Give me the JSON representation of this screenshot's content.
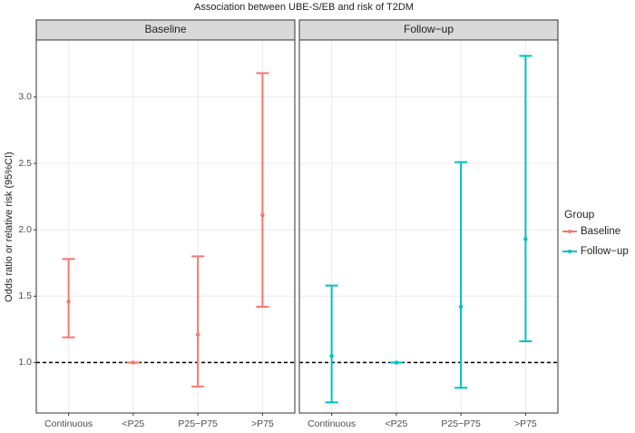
{
  "title": "Association between UBE-S/EB and risk of T2DM",
  "y_label": "Odds ratio or relative risk (95%CI)",
  "legend_title": "Group",
  "chart_data": [
    {
      "type": "errorbar",
      "subtitle": "Baseline",
      "categories": [
        "Continuous",
        "<P25",
        "P25−P75",
        ">P75"
      ],
      "series": [
        {
          "name": "Baseline",
          "color": "#f8766d",
          "values": [
            1.46,
            1.0,
            1.21,
            2.11
          ],
          "lower": [
            1.19,
            1.0,
            0.82,
            1.42
          ],
          "upper": [
            1.78,
            1.0,
            1.8,
            3.18
          ]
        }
      ],
      "ylim": [
        0.62,
        3.43
      ],
      "yticks": [
        {
          "value": 1.0,
          "label": "1.0"
        },
        {
          "value": 1.5,
          "label": "1.5"
        },
        {
          "value": 2.0,
          "label": "2.0"
        },
        {
          "value": 2.5,
          "label": "2.5"
        },
        {
          "value": 3.0,
          "label": "3.0"
        }
      ],
      "reference_line": 1.0,
      "grid": true
    },
    {
      "type": "errorbar",
      "subtitle": "Follow−up",
      "categories": [
        "Continuous",
        "<P25",
        "P25−P75",
        ">P75"
      ],
      "series": [
        {
          "name": "Follow−up",
          "color": "#00bfc4",
          "values": [
            1.05,
            1.0,
            1.42,
            1.93
          ],
          "lower": [
            0.7,
            1.0,
            0.81,
            1.16
          ],
          "upper": [
            1.58,
            1.0,
            2.51,
            3.31
          ]
        }
      ],
      "ylim": [
        0.62,
        3.43
      ],
      "yticks": [
        {
          "value": 1.0,
          "label": "1.0"
        },
        {
          "value": 1.5,
          "label": "1.5"
        },
        {
          "value": 2.0,
          "label": "2.0"
        },
        {
          "value": 2.5,
          "label": "2.5"
        },
        {
          "value": 3.0,
          "label": "3.0"
        }
      ],
      "reference_line": 1.0,
      "grid": true
    }
  ]
}
